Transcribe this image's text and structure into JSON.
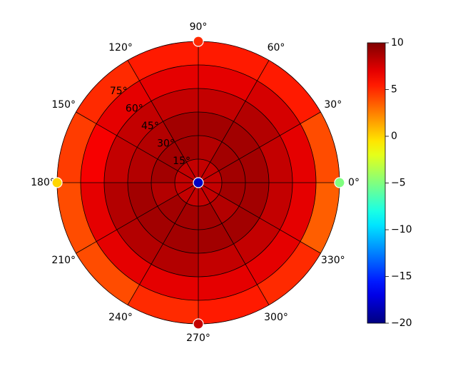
{
  "chart_data": {
    "type": "polar_heatmap",
    "r_bins": [
      0,
      15,
      30,
      45,
      60,
      75,
      90
    ],
    "theta_bins": [
      0,
      30,
      60,
      90,
      120,
      150,
      180,
      210,
      240,
      270,
      300,
      330,
      360
    ],
    "z": [
      [
        8,
        8,
        8,
        8,
        8,
        8,
        8,
        8,
        8,
        8,
        8,
        8
      ],
      [
        9,
        9,
        8.5,
        9,
        9,
        9,
        8.5,
        9,
        9,
        9,
        8.5,
        9
      ],
      [
        9,
        9,
        9,
        9,
        8.5,
        8.5,
        9,
        9,
        9,
        9,
        9,
        9
      ],
      [
        8,
        8.5,
        8,
        8,
        8,
        8,
        8.5,
        8.5,
        8.5,
        8,
        8,
        8
      ],
      [
        7,
        7.5,
        7,
        7,
        7,
        6.5,
        7,
        7,
        7,
        7,
        7,
        7
      ],
      [
        4,
        5.5,
        5.5,
        5.5,
        5,
        4.5,
        4,
        4,
        5,
        5.5,
        5,
        3.5
      ]
    ],
    "points": {
      "theta": [
        0,
        90,
        180,
        270,
        0
      ],
      "r": [
        90,
        90,
        90,
        90,
        0
      ],
      "values": [
        -5,
        5,
        0,
        8,
        -18
      ]
    },
    "colormap": "jet",
    "rlim": [
      0,
      90
    ],
    "rticks": [
      {
        "value": 15,
        "label": "15°"
      },
      {
        "value": 30,
        "label": "30°"
      },
      {
        "value": 45,
        "label": "45°"
      },
      {
        "value": 60,
        "label": "60°"
      },
      {
        "value": 75,
        "label": "75°"
      }
    ],
    "thetaticks": [
      {
        "value": 0,
        "label": "0°"
      },
      {
        "value": 30,
        "label": "30°"
      },
      {
        "value": 60,
        "label": "60°"
      },
      {
        "value": 90,
        "label": "90°"
      },
      {
        "value": 120,
        "label": "120°"
      },
      {
        "value": 150,
        "label": "150°"
      },
      {
        "value": 180,
        "label": "180°"
      },
      {
        "value": 210,
        "label": "210°"
      },
      {
        "value": 240,
        "label": "240°"
      },
      {
        "value": 270,
        "label": "270°"
      },
      {
        "value": 300,
        "label": "300°"
      },
      {
        "value": 330,
        "label": "330°"
      }
    ],
    "clim": [
      -20,
      10
    ],
    "cticks": [
      {
        "value": -20,
        "label": "−20"
      },
      {
        "value": -15,
        "label": "−15"
      },
      {
        "value": -10,
        "label": "−10"
      },
      {
        "value": -5,
        "label": "−5"
      },
      0,
      5,
      10
    ],
    "grid": true
  }
}
